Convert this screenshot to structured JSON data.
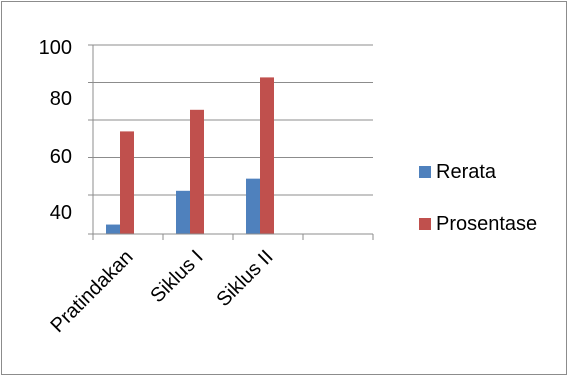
{
  "chart_data": {
    "type": "bar",
    "categories": [
      "Pratindakan",
      "Siklus I",
      "Siklus II",
      ""
    ],
    "series": [
      {
        "name": "Rerata",
        "values": [
          33.5,
          46,
          50.5,
          null
        ],
        "color": "#4f81bd"
      },
      {
        "name": "Prosentase",
        "values": [
          68,
          76,
          88,
          null
        ],
        "color": "#c0504d"
      }
    ],
    "y_ticks": [
      "100",
      "80",
      "60",
      "40"
    ],
    "ylim": [
      30,
      100
    ],
    "grid": true,
    "legend_position": "right"
  }
}
